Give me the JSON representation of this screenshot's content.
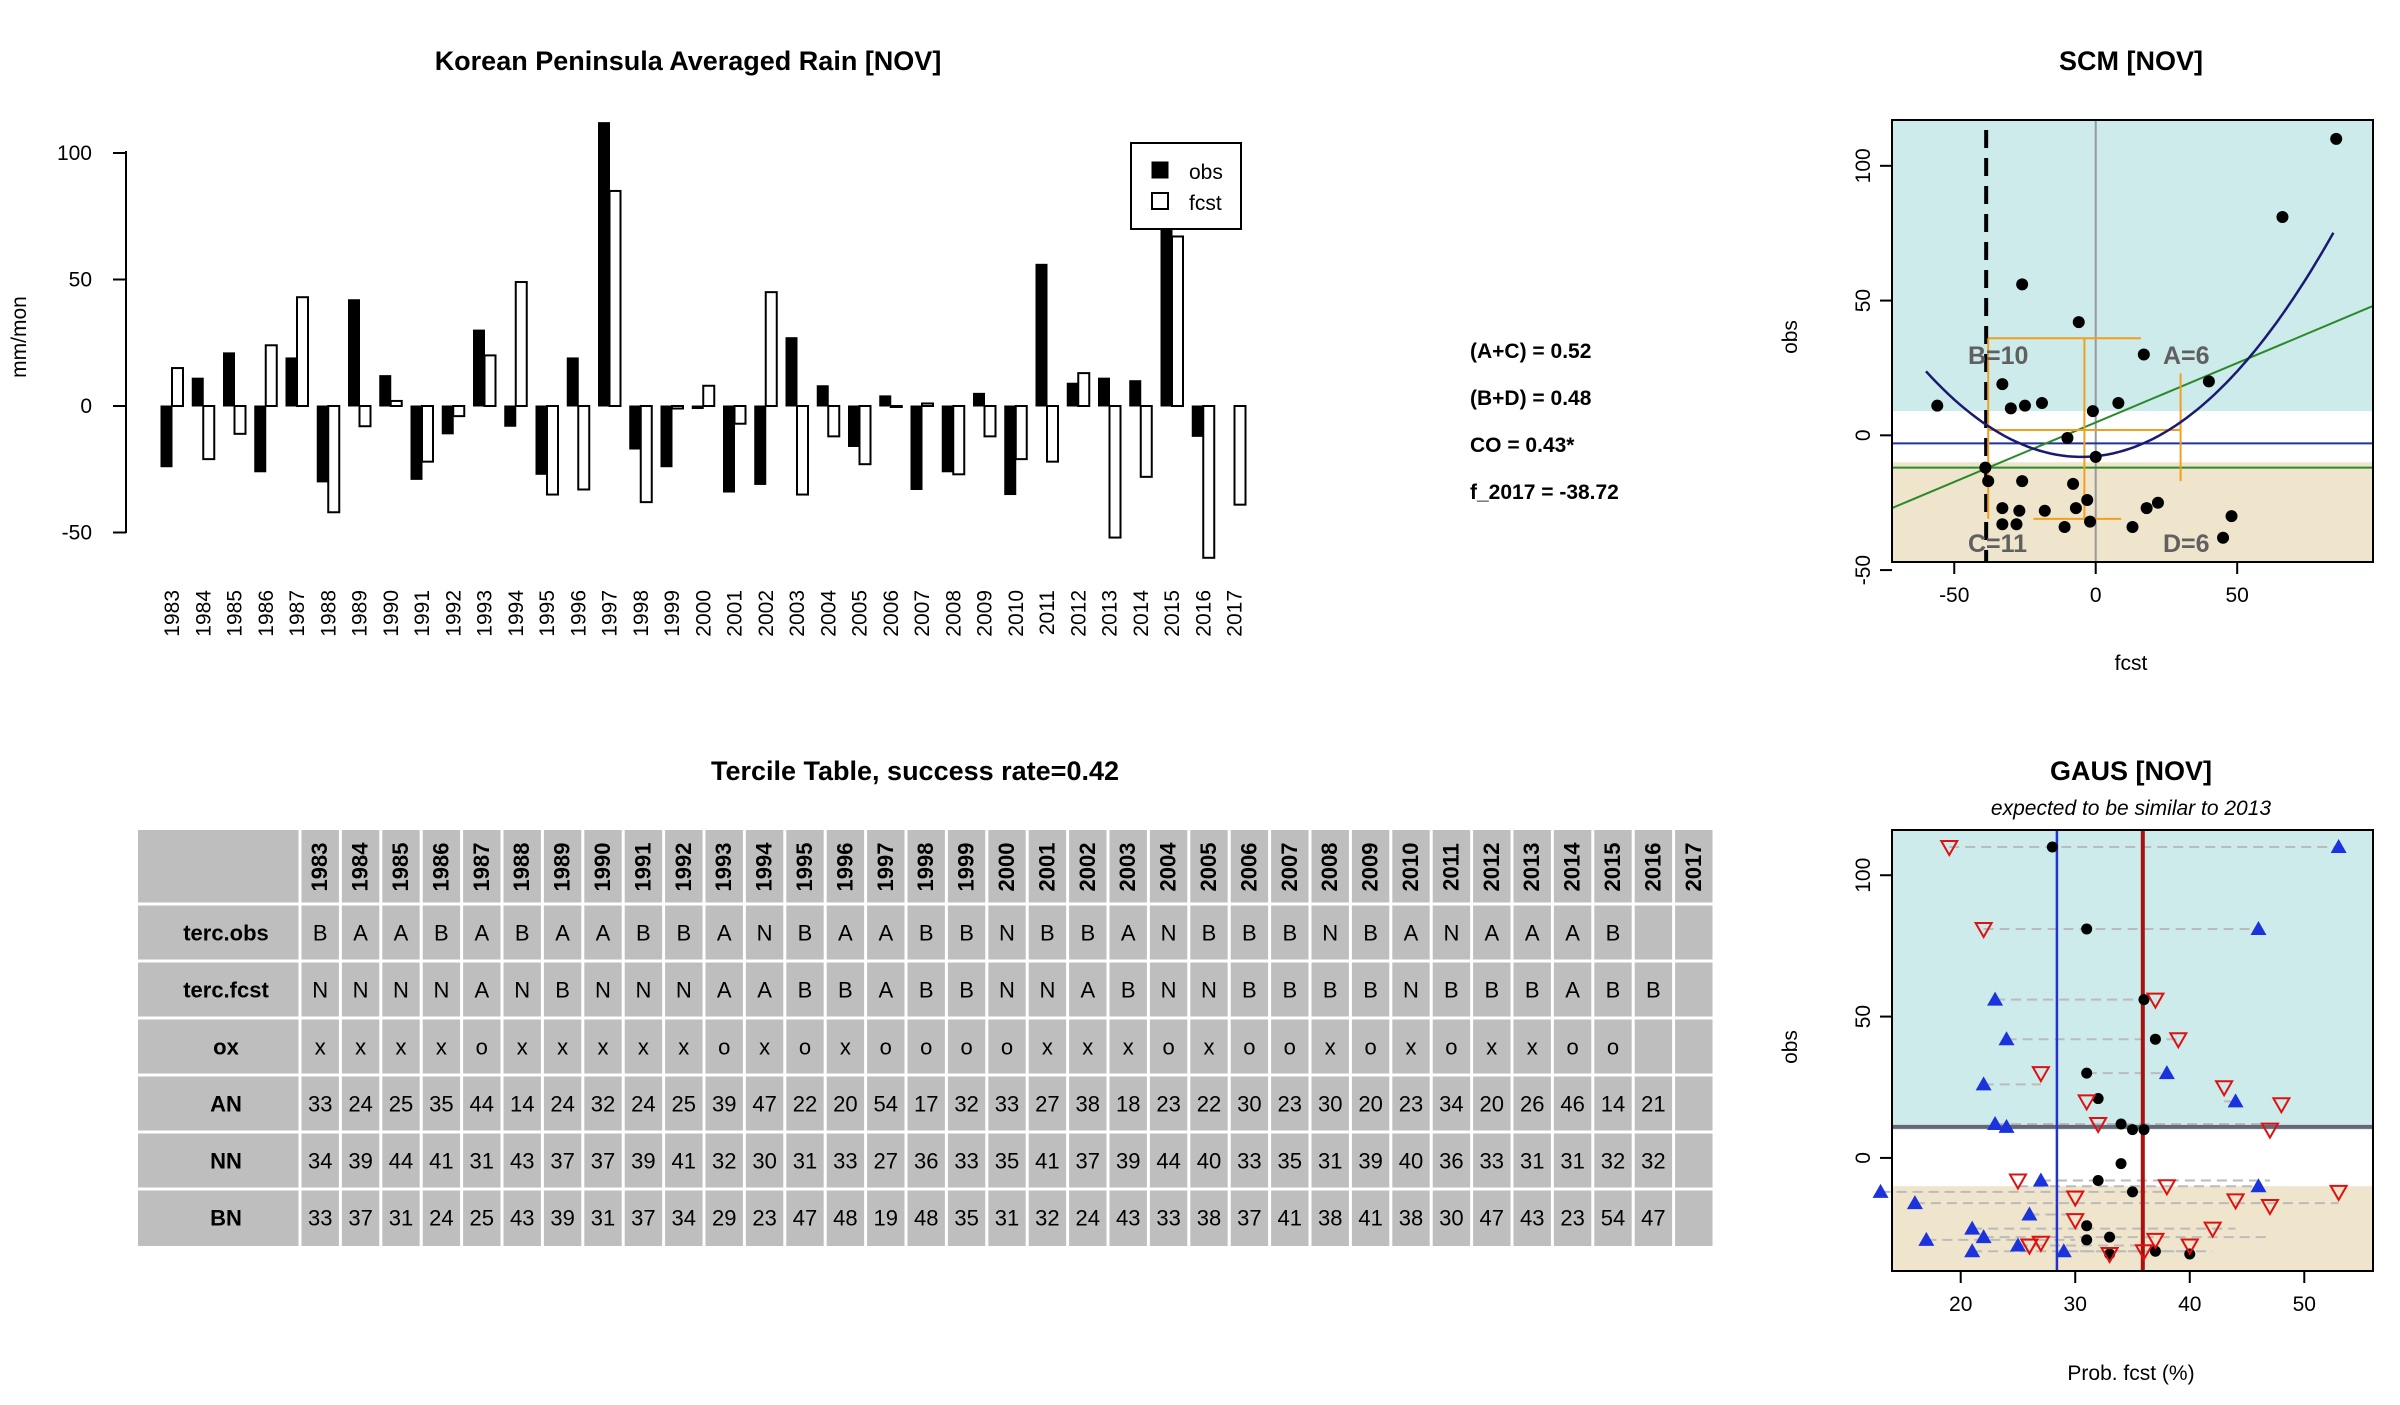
{
  "bar_chart": {
    "title": "Korean Peninsula Averaged Rain [NOV]",
    "ylabel": "mm/mon",
    "yticks": [
      "-50",
      "0",
      "50",
      "100"
    ],
    "legend": [
      "obs",
      "fcst"
    ]
  },
  "stats": {
    "ac": "(A+C) = 0.52",
    "bd": "(B+D) = 0.48",
    "co": "CO = 0.43*",
    "f": "f_2017 = -38.72"
  },
  "scm": {
    "title": "SCM [NOV]",
    "xlabel": "fcst",
    "ylabel": "obs",
    "xticks": [
      "-50",
      "0",
      "50"
    ],
    "yticks": [
      "-50",
      "0",
      "50",
      "100"
    ],
    "quad_a": "A=6",
    "quad_b": "B=10",
    "quad_c": "C=11",
    "quad_d": "D=6"
  },
  "gaus": {
    "title": "GAUS [NOV]",
    "subtitle": "expected to be similar to 2013",
    "xlabel": "Prob. fcst (%)",
    "ylabel": "obs",
    "xticks": [
      "20",
      "30",
      "40",
      "50"
    ],
    "yticks": [
      "0",
      "50",
      "100"
    ]
  },
  "table": {
    "title": "Tercile Table,  success rate=0.42",
    "row_labels": [
      "terc.obs",
      "terc.fcst",
      "ox",
      "AN",
      "NN",
      "BN"
    ],
    "terc_obs": [
      "B",
      "A",
      "A",
      "B",
      "A",
      "B",
      "A",
      "A",
      "B",
      "B",
      "A",
      "N",
      "B",
      "A",
      "A",
      "B",
      "B",
      "N",
      "B",
      "B",
      "A",
      "N",
      "B",
      "B",
      "B",
      "N",
      "B",
      "A",
      "N",
      "A",
      "A",
      "A",
      "B",
      ""
    ],
    "terc_fcst": [
      "N",
      "N",
      "N",
      "N",
      "A",
      "N",
      "B",
      "N",
      "N",
      "N",
      "A",
      "A",
      "B",
      "B",
      "A",
      "B",
      "B",
      "N",
      "N",
      "A",
      "B",
      "N",
      "N",
      "B",
      "B",
      "B",
      "B",
      "N",
      "B",
      "B",
      "B",
      "A",
      "B",
      "B"
    ],
    "ox": [
      "x",
      "x",
      "x",
      "x",
      "o",
      "x",
      "x",
      "x",
      "x",
      "x",
      "o",
      "x",
      "o",
      "x",
      "o",
      "o",
      "o",
      "o",
      "x",
      "x",
      "x",
      "o",
      "x",
      "o",
      "o",
      "x",
      "o",
      "x",
      "o",
      "x",
      "x",
      "o",
      "o",
      ""
    ],
    "an": [
      "33",
      "24",
      "25",
      "35",
      "44",
      "14",
      "24",
      "32",
      "24",
      "25",
      "39",
      "47",
      "22",
      "20",
      "54",
      "17",
      "32",
      "33",
      "27",
      "38",
      "18",
      "23",
      "22",
      "30",
      "23",
      "30",
      "20",
      "23",
      "34",
      "20",
      "26",
      "46",
      "14",
      "21"
    ],
    "nn": [
      "34",
      "39",
      "44",
      "41",
      "31",
      "43",
      "37",
      "37",
      "39",
      "41",
      "32",
      "30",
      "31",
      "33",
      "27",
      "36",
      "33",
      "35",
      "41",
      "37",
      "39",
      "44",
      "40",
      "33",
      "35",
      "31",
      "39",
      "40",
      "36",
      "33",
      "31",
      "31",
      "32",
      "32"
    ],
    "bn": [
      "33",
      "37",
      "31",
      "24",
      "25",
      "43",
      "39",
      "31",
      "37",
      "34",
      "29",
      "23",
      "47",
      "48",
      "19",
      "48",
      "35",
      "31",
      "32",
      "24",
      "43",
      "33",
      "38",
      "37",
      "41",
      "38",
      "41",
      "38",
      "30",
      "47",
      "43",
      "23",
      "54",
      "47"
    ]
  },
  "chart_data": [
    {
      "type": "bar",
      "title": "Korean Peninsula Averaged Rain [NOV]",
      "xlabel": "",
      "ylabel": "mm/mon",
      "ylim": [
        -60,
        112
      ],
      "categories": [
        "1983",
        "1984",
        "1985",
        "1986",
        "1987",
        "1988",
        "1989",
        "1990",
        "1991",
        "1992",
        "1993",
        "1994",
        "1995",
        "1996",
        "1997",
        "1998",
        "1999",
        "2000",
        "2001",
        "2002",
        "2003",
        "2004",
        "2005",
        "2006",
        "2007",
        "2008",
        "2009",
        "2010",
        "2011",
        "2012",
        "2013",
        "2014",
        "2015",
        "2016",
        "2017"
      ],
      "series": [
        {
          "name": "obs",
          "values": [
            -24,
            11,
            21,
            -26,
            19,
            -30,
            42,
            12,
            -29,
            -11,
            30,
            -8,
            -27,
            19,
            112,
            -17,
            -24,
            -1,
            -34,
            -31,
            27,
            8,
            -16,
            4,
            -33,
            -26,
            5,
            -35,
            56,
            9,
            11,
            10,
            70,
            -12,
            null
          ]
        },
        {
          "name": "fcst",
          "values": [
            15,
            -21,
            -11,
            24,
            43,
            -42,
            -8,
            2,
            -22,
            -4,
            20,
            49,
            -35,
            -33,
            85,
            -38,
            -1,
            8,
            -7,
            45,
            -35,
            -12,
            -23,
            0,
            1,
            -27,
            -12,
            -21,
            -22,
            13,
            -52,
            -28,
            67,
            -60,
            -39
          ]
        }
      ],
      "legend": "top-right"
    },
    {
      "type": "scatter",
      "title": "SCM [NOV]",
      "xlabel": "fcst",
      "ylabel": "obs",
      "xlim": [
        -72,
        98
      ],
      "ylim": [
        -47,
        117
      ],
      "obs_tercile_bounds": [
        -10,
        9
      ],
      "fcst_threshold": -38.72,
      "points": [
        [
          -56,
          11
        ],
        [
          -39,
          -12
        ],
        [
          -38,
          -17
        ],
        [
          -33,
          -27
        ],
        [
          -33,
          -33
        ],
        [
          -33,
          19
        ],
        [
          -30,
          10
        ],
        [
          -28,
          -33
        ],
        [
          -27,
          -28
        ],
        [
          -26,
          -17
        ],
        [
          -26,
          56
        ],
        [
          -25,
          11
        ],
        [
          -19,
          12
        ],
        [
          -18,
          -28
        ],
        [
          -11,
          -34
        ],
        [
          -10,
          -1
        ],
        [
          -8,
          -18
        ],
        [
          -7,
          -27
        ],
        [
          -6,
          42
        ],
        [
          -3,
          -24
        ],
        [
          -2,
          -32
        ],
        [
          0,
          -8
        ],
        [
          -1,
          9
        ],
        [
          8,
          12
        ],
        [
          13,
          -34
        ],
        [
          17,
          30
        ],
        [
          18,
          -27
        ],
        [
          22,
          -25
        ],
        [
          40,
          20
        ],
        [
          45,
          -38
        ],
        [
          48,
          -30
        ],
        [
          66,
          81
        ],
        [
          85,
          110
        ]
      ]
    },
    {
      "type": "scatter",
      "title": "GAUS [NOV]",
      "subtitle": "expected to be similar to 2013",
      "xlabel": "Prob. fcst (%)",
      "ylabel": "obs",
      "xlim": [
        14,
        56
      ],
      "ylim": [
        -40,
        116
      ],
      "vlines": [
        28.4,
        35.9
      ],
      "points_obs_vs_climatology": [
        [
          28,
          110
        ],
        [
          31,
          81
        ],
        [
          36,
          56
        ],
        [
          37,
          42
        ],
        [
          31,
          30
        ],
        [
          32,
          21
        ],
        [
          34,
          12
        ],
        [
          35,
          10
        ],
        [
          36,
          10
        ],
        [
          34,
          -2
        ],
        [
          32,
          -8
        ],
        [
          35,
          -12
        ],
        [
          31,
          -24
        ],
        [
          33,
          -28
        ],
        [
          37,
          -33
        ],
        [
          33,
          -34
        ],
        [
          40,
          -34
        ],
        [
          31,
          -29
        ]
      ],
      "points_AN": [
        [
          53,
          110
        ],
        [
          46,
          81
        ],
        [
          23,
          56
        ],
        [
          24,
          42
        ],
        [
          22,
          26
        ],
        [
          38,
          30
        ],
        [
          44,
          20
        ],
        [
          23,
          12
        ],
        [
          24,
          11
        ],
        [
          27,
          -8
        ],
        [
          46,
          -10
        ],
        [
          13,
          -12
        ],
        [
          16,
          -16
        ],
        [
          26,
          -20
        ],
        [
          21,
          -25
        ],
        [
          22,
          -28
        ],
        [
          17,
          -29
        ],
        [
          21,
          -33
        ],
        [
          25,
          -31
        ],
        [
          29,
          -33
        ]
      ],
      "points_BN": [
        [
          19,
          110
        ],
        [
          22,
          81
        ],
        [
          37,
          56
        ],
        [
          39,
          42
        ],
        [
          27,
          30
        ],
        [
          31,
          20
        ],
        [
          43,
          25
        ],
        [
          48,
          19
        ],
        [
          32,
          12
        ],
        [
          47,
          10
        ],
        [
          25,
          -8
        ],
        [
          38,
          -10
        ],
        [
          53,
          -12
        ],
        [
          30,
          -14
        ],
        [
          44,
          -15
        ],
        [
          47,
          -17
        ],
        [
          30,
          -22
        ],
        [
          42,
          -25
        ],
        [
          37,
          -29
        ],
        [
          40,
          -31
        ],
        [
          26,
          -31
        ],
        [
          36,
          -33
        ],
        [
          33,
          -34
        ],
        [
          27,
          -30
        ]
      ]
    }
  ]
}
